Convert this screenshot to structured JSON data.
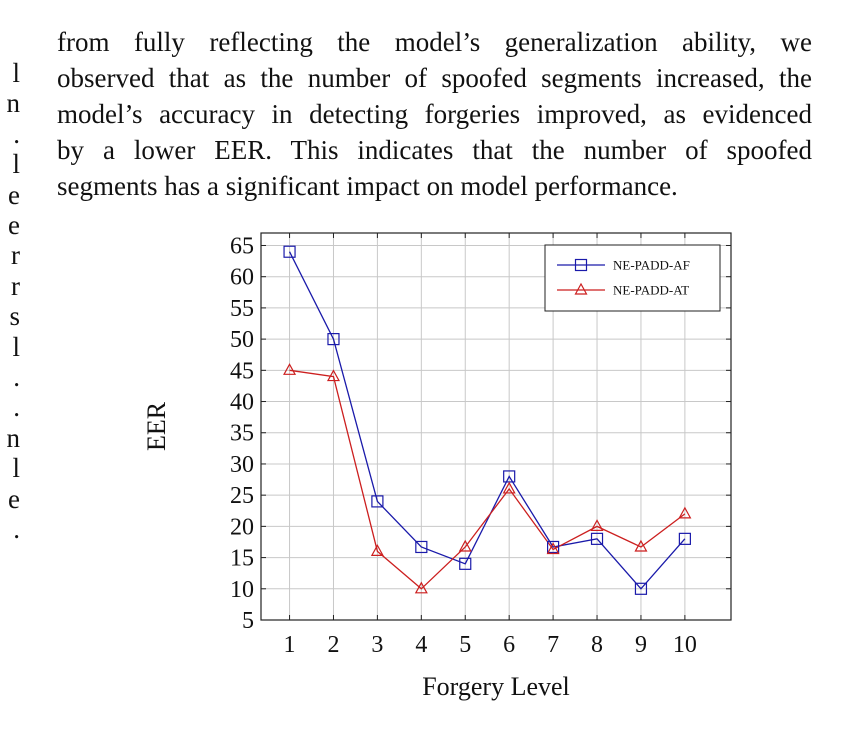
{
  "left_margin_fragments": [
    "l",
    "n",
    ".",
    "l",
    "e",
    "e",
    "r",
    "r",
    "s",
    "l",
    ".",
    ".",
    "n",
    "l",
    "e",
    "."
  ],
  "paragraph": {
    "lines": [
      "from fully reflecting the model’s generalization ability, we",
      "observed that as the number of spoofed segments increased, the",
      "model’s accuracy in detecting forgeries improved, as evidenced",
      "by a lower EER. This indicates that the number of spoofed",
      "segments has a significant impact on model performance."
    ]
  },
  "chart_data": {
    "type": "line",
    "x": [
      1,
      2,
      3,
      4,
      5,
      6,
      7,
      8,
      9,
      10
    ],
    "series": [
      {
        "name": "NE-PADD-AF",
        "color": "#1a1aaa",
        "marker": "square",
        "values": [
          64,
          50,
          24,
          16.7,
          14,
          28,
          16.7,
          18,
          10,
          18
        ]
      },
      {
        "name": "NE-PADD-AT",
        "color": "#cc1f1f",
        "marker": "triangle",
        "values": [
          45,
          44,
          16,
          10,
          16.7,
          26,
          16.3,
          20,
          16.7,
          22
        ]
      }
    ],
    "xlabel": "Forgery Level",
    "ylabel": "EER",
    "xlim": [
      0.35,
      11.05
    ],
    "ylim": [
      5,
      67
    ],
    "xticks": [
      1,
      2,
      3,
      4,
      5,
      6,
      7,
      8,
      9,
      10
    ],
    "yticks": [
      5,
      10,
      15,
      20,
      25,
      30,
      35,
      40,
      45,
      50,
      55,
      60,
      65
    ],
    "grid": true,
    "legend_position": "top-right"
  }
}
